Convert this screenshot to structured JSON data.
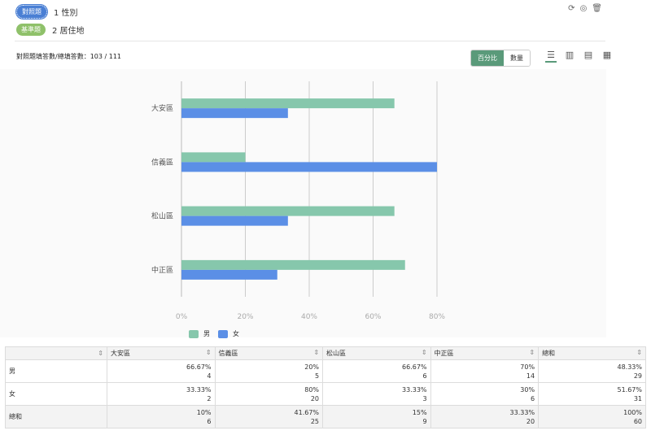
{
  "header": {
    "compare_tag": "對照題",
    "compare_question": "1 性別",
    "base_tag": "基準題",
    "base_question": "2 居住地",
    "colors": {
      "compare_tag": "#4a7fd4",
      "base_tag": "#8fc16a"
    }
  },
  "toolbar": {
    "count_label": "對照題填答數/總填答數：103 / 111",
    "percent_label": "百分比",
    "number_label": "數量"
  },
  "chart_data": {
    "type": "bar",
    "orientation": "horizontal",
    "categories": [
      "大安區",
      "信義區",
      "松山區",
      "中正區"
    ],
    "series": [
      {
        "name": "男",
        "values": [
          66.67,
          20,
          66.67,
          70
        ],
        "color": "#86c7ac"
      },
      {
        "name": "女",
        "values": [
          33.33,
          80,
          33.33,
          30
        ],
        "color": "#5b8fe6"
      }
    ],
    "xlim": [
      0,
      80
    ],
    "ticks": [
      "0%",
      "20%",
      "40%",
      "60%",
      "80%"
    ],
    "grid": true,
    "legend": "bottom-left"
  },
  "table": {
    "columns": [
      "",
      "大安區",
      "信義區",
      "松山區",
      "中正區",
      "總和"
    ],
    "rows": [
      {
        "label": "男",
        "cells": [
          [
            "66.67%",
            "4"
          ],
          [
            "20%",
            "5"
          ],
          [
            "66.67%",
            "6"
          ],
          [
            "70%",
            "14"
          ],
          [
            "48.33%",
            "29"
          ]
        ]
      },
      {
        "label": "女",
        "cells": [
          [
            "33.33%",
            "2"
          ],
          [
            "80%",
            "20"
          ],
          [
            "33.33%",
            "3"
          ],
          [
            "30%",
            "6"
          ],
          [
            "51.67%",
            "31"
          ]
        ]
      },
      {
        "label": "總和",
        "cells": [
          [
            "10%",
            "6"
          ],
          [
            "41.67%",
            "25"
          ],
          [
            "15%",
            "9"
          ],
          [
            "33.33%",
            "20"
          ],
          [
            "100%",
            "60"
          ]
        ]
      }
    ]
  }
}
